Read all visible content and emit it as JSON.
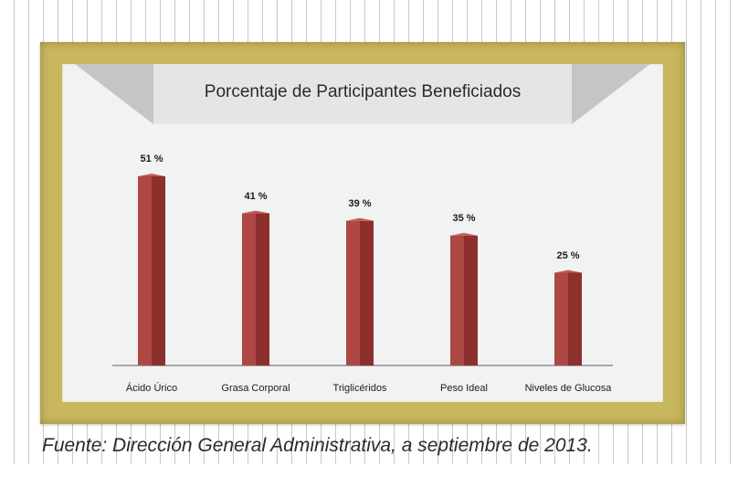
{
  "caption": "Fuente: Dirección General Administrativa, a septiembre de 2013.",
  "colors": {
    "bar_front": "#ad4845",
    "bar_side": "#8d2f2d",
    "bar_top": "#c45b56",
    "baseline": "#8f8f8f"
  },
  "chart_data": {
    "type": "bar",
    "title": "Porcentaje de Participantes Beneficiados",
    "categories": [
      "Ácido Úrico",
      "Grasa Corporal",
      "Triglicéridos",
      "Peso Ideal",
      "Niveles de Glucosa"
    ],
    "values": [
      51,
      41,
      39,
      35,
      25
    ],
    "value_labels": [
      "51 %",
      "41 %",
      "39 %",
      "35 %",
      "25 %"
    ],
    "ylim": [
      0,
      60
    ],
    "grid": false,
    "legend": "none"
  }
}
